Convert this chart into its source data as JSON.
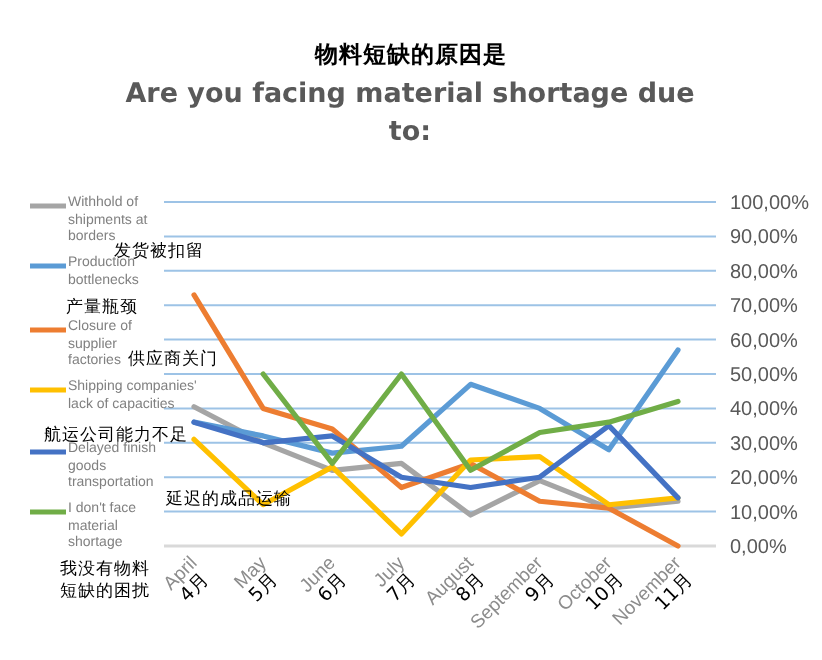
{
  "chart_data": {
    "type": "line",
    "title": "物料短缺的原因是",
    "subtitle": "Are you facing material shortage due to:",
    "categories": [
      "April 4月",
      "May 5月",
      "June 6月",
      "July 7月",
      "August 8月",
      "September 9月",
      "October 10月",
      "November 11月"
    ],
    "series": [
      {
        "name": "Withhold of shipments at borders",
        "color": "#a5a5a5",
        "values": [
          40.5,
          30,
          22,
          24,
          9,
          19,
          11,
          13
        ]
      },
      {
        "name": "Production bottlenecks",
        "color": "#5b9bd5",
        "values": [
          36,
          32,
          27,
          29,
          47,
          40,
          28,
          57
        ]
      },
      {
        "name": "Closure of supplier factories",
        "color": "#ed7d31",
        "values": [
          73,
          40,
          34,
          17,
          24,
          13,
          11,
          0
        ]
      },
      {
        "name": "Shipping companies' lack  of capacities",
        "color": "#ffc000",
        "values": [
          31,
          12,
          23,
          3.5,
          25,
          26,
          12,
          14
        ]
      },
      {
        "name": "Delayed finish goods transportation",
        "color": "#4472c4",
        "values": [
          36,
          30,
          32,
          20,
          17,
          20,
          35,
          14
        ]
      },
      {
        "name": "I don't face material shortage",
        "color": "#70ad47",
        "values": [
          null,
          50,
          24,
          50,
          22,
          33,
          36,
          42
        ]
      }
    ],
    "annotations": [
      "发货被扣留",
      "产量瓶颈",
      "供应商关门",
      "航运公司能力不足",
      "延迟的成品运输",
      "我没有物料短缺的困扰"
    ],
    "ylim": [
      0,
      100
    ],
    "yticks": [
      {
        "value": 0,
        "label": "0,00%"
      },
      {
        "value": 10,
        "label": "10,00%"
      },
      {
        "value": 20,
        "label": "20,00%"
      },
      {
        "value": 30,
        "label": "30,00%"
      },
      {
        "value": 40,
        "label": "40,00%"
      },
      {
        "value": 50,
        "label": "50,00%"
      },
      {
        "value": 60,
        "label": "60,00%"
      },
      {
        "value": 70,
        "label": "70,00%"
      },
      {
        "value": 80,
        "label": "80,00%"
      },
      {
        "value": 90,
        "label": "90,00%"
      },
      {
        "value": 100,
        "label": "100,00%"
      }
    ],
    "grid": "y",
    "legend": "left",
    "line_style": "solid"
  }
}
